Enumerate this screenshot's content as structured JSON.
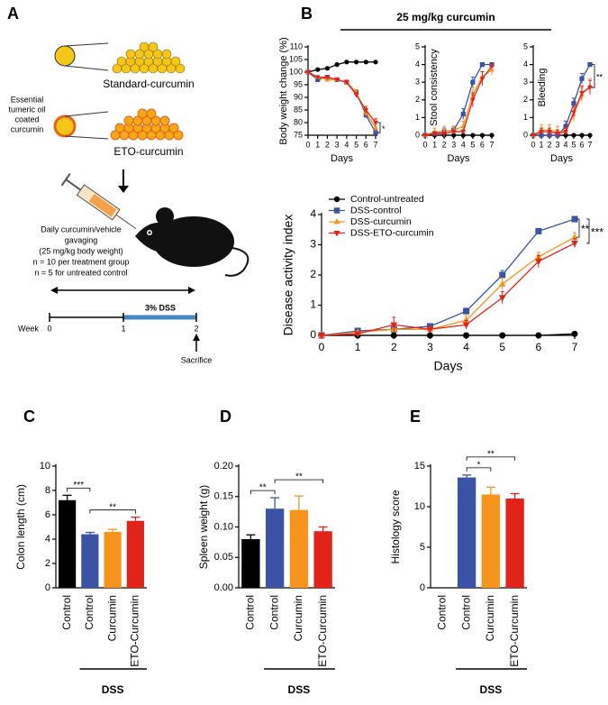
{
  "panels": [
    "A",
    "B",
    "C",
    "D",
    "E"
  ],
  "panel_a": {
    "standard_label": "Standard-curcumin",
    "eto_note": [
      "Essential",
      "tumeric oil",
      "coated",
      "curcumin"
    ],
    "eto_label": "ETO-curcumin",
    "protocol": [
      "Daily curcumin/vehicle",
      "gavaging",
      "(25 mg/kg body weight)",
      "n = 10 per treatment group",
      "n = 5 for untreated control"
    ],
    "dss_label": "3% DSS",
    "week_label": "Week",
    "weeks": [
      0,
      1,
      2
    ],
    "sacrifice_label": "Sacrifice"
  },
  "b_header": "25 mg/kg curcumin",
  "chart_data": [
    {
      "type": "line",
      "y_label": "Body weight change (%)",
      "x_label": "Days",
      "x": [
        0,
        1,
        2,
        3,
        4,
        5,
        6,
        7
      ],
      "xlim": [
        0,
        7
      ],
      "xticks": [
        0,
        1,
        2,
        3,
        4,
        5,
        6,
        7
      ],
      "ylim": [
        75,
        110
      ],
      "yticks": [
        75,
        80,
        85,
        90,
        95,
        100,
        105,
        110
      ],
      "annotations": [
        "*"
      ],
      "series": [
        {
          "color": "#000000",
          "marker": "circle",
          "values": [
            100,
            101,
            101.5,
            103,
            104,
            104,
            104,
            104
          ],
          "errors": [
            0,
            0.5,
            0.5,
            0.5,
            0.5,
            0.5,
            0.5,
            0.5
          ]
        },
        {
          "color": "#3a53a4",
          "marker": "square",
          "values": [
            100,
            97,
            98,
            97,
            96,
            92,
            83,
            76
          ],
          "errors": [
            0,
            0.5,
            0.5,
            0.5,
            0.8,
            1,
            1.2,
            1.2
          ]
        },
        {
          "color": "#f7941d",
          "marker": "triangle-up",
          "values": [
            100,
            98,
            97,
            97,
            96,
            92,
            84,
            78
          ],
          "errors": [
            0,
            0.6,
            0.6,
            0.6,
            0.8,
            1,
            1.5,
            1.5
          ]
        },
        {
          "color": "#e2231a",
          "marker": "triangle-down",
          "values": [
            100,
            98,
            98,
            97,
            96,
            91,
            85,
            80
          ],
          "errors": [
            0,
            0.5,
            0.6,
            0.6,
            0.8,
            1,
            1.4,
            1.5
          ]
        }
      ]
    },
    {
      "type": "line",
      "y_label": "Stool consistency",
      "x_label": "Days",
      "x": [
        0,
        1,
        2,
        3,
        4,
        5,
        6,
        7
      ],
      "xlim": [
        0,
        7
      ],
      "xticks": [
        0,
        1,
        2,
        3,
        4,
        5,
        6,
        7
      ],
      "ylim": [
        0,
        5
      ],
      "yticks": [
        0,
        1,
        2,
        3,
        4,
        5
      ],
      "annotations": [],
      "series": [
        {
          "color": "#000000",
          "marker": "circle",
          "values": [
            0,
            0,
            0,
            0,
            0,
            0,
            0,
            0
          ],
          "errors": [
            0,
            0,
            0,
            0,
            0,
            0,
            0,
            0
          ]
        },
        {
          "color": "#3a53a4",
          "marker": "square",
          "values": [
            0,
            0.1,
            0.2,
            0.3,
            1.2,
            3,
            4,
            4
          ],
          "errors": [
            0,
            0.1,
            0.2,
            0.2,
            0.3,
            0.3,
            0,
            0
          ]
        },
        {
          "color": "#f7941d",
          "marker": "triangle-up",
          "values": [
            0,
            0.2,
            0.2,
            0.3,
            0.5,
            2.3,
            3.3,
            3.7
          ],
          "errors": [
            0,
            0.2,
            0.3,
            0.2,
            0.3,
            0.4,
            0.3,
            0.3
          ]
        },
        {
          "color": "#e2231a",
          "marker": "triangle-down",
          "values": [
            0,
            0.1,
            0.1,
            0.2,
            0.2,
            2,
            3.2,
            3.9
          ],
          "errors": [
            0,
            0.1,
            0.1,
            0.1,
            0.1,
            0.4,
            0.4,
            0.1
          ]
        }
      ]
    },
    {
      "type": "line",
      "y_label": "Bleeding",
      "x_label": "Days",
      "x": [
        0,
        1,
        2,
        3,
        4,
        5,
        6,
        7
      ],
      "xlim": [
        0,
        7
      ],
      "xticks": [
        0,
        1,
        2,
        3,
        4,
        5,
        6,
        7
      ],
      "ylim": [
        0,
        5
      ],
      "yticks": [
        0,
        1,
        2,
        3,
        4,
        5
      ],
      "annotations": [
        "**"
      ],
      "series": [
        {
          "color": "#000000",
          "marker": "circle",
          "values": [
            0,
            0,
            0,
            0,
            0,
            0,
            0,
            0
          ],
          "errors": [
            0,
            0,
            0,
            0,
            0,
            0,
            0,
            0
          ]
        },
        {
          "color": "#3a53a4",
          "marker": "square",
          "values": [
            0,
            0,
            0,
            0,
            0.5,
            1.8,
            3.2,
            4
          ],
          "errors": [
            0,
            0,
            0,
            0,
            0.3,
            0.3,
            0.3,
            0
          ]
        },
        {
          "color": "#f7941d",
          "marker": "triangle-up",
          "values": [
            0,
            0.3,
            0.3,
            0.2,
            0.2,
            1.2,
            2.3,
            2.8
          ],
          "errors": [
            0,
            0.3,
            0.3,
            0.3,
            0.2,
            0.4,
            0.4,
            0.4
          ]
        },
        {
          "color": "#e2231a",
          "marker": "triangle-down",
          "values": [
            0,
            0.2,
            0.2,
            0.1,
            0.2,
            1.3,
            2.4,
            2.7
          ],
          "errors": [
            0,
            0.2,
            0.2,
            0.2,
            0.2,
            0.3,
            0.4,
            0.4
          ]
        }
      ]
    },
    {
      "type": "line",
      "y_label": "Disease activity index",
      "x_label": "Days",
      "legend": "upper left",
      "x": [
        0,
        1,
        2,
        3,
        4,
        5,
        6,
        7
      ],
      "xlim": [
        0,
        7
      ],
      "xticks": [
        0,
        1,
        2,
        3,
        4,
        5,
        6,
        7
      ],
      "ylim": [
        0,
        4
      ],
      "yticks": [
        0,
        1,
        2,
        3,
        4
      ],
      "annotations": [
        "**",
        "***"
      ],
      "series": [
        {
          "name": "Control-untreated",
          "color": "#000000",
          "marker": "circle",
          "values": [
            0,
            0,
            0,
            0,
            0,
            0,
            0,
            0.05
          ],
          "errors": [
            0,
            0,
            0,
            0,
            0,
            0,
            0,
            0
          ]
        },
        {
          "name": "DSS-control",
          "color": "#3a53a4",
          "marker": "square",
          "values": [
            0,
            0.15,
            0.2,
            0.3,
            0.8,
            2,
            3.45,
            3.85
          ],
          "errors": [
            0,
            0.05,
            0.05,
            0.05,
            0.1,
            0.15,
            0.05,
            0.05
          ]
        },
        {
          "name": "DSS-curcumin",
          "color": "#f7941d",
          "marker": "triangle-up",
          "values": [
            0,
            0.1,
            0.2,
            0.2,
            0.5,
            1.7,
            2.6,
            3.25
          ],
          "errors": [
            0,
            0.05,
            0.05,
            0.05,
            0.15,
            0.2,
            0.15,
            0.15
          ]
        },
        {
          "name": "DSS-ETO-curcumin",
          "color": "#e2231a",
          "marker": "triangle-down",
          "values": [
            0,
            0.05,
            0.35,
            0.2,
            0.35,
            1.25,
            2.45,
            3.05
          ],
          "errors": [
            0,
            0.05,
            0.25,
            0.1,
            0.15,
            0.2,
            0.2,
            0.15
          ]
        }
      ]
    },
    {
      "type": "bar",
      "y_label": "Colon length (cm)",
      "group_label": "DSS",
      "categories": [
        "Control",
        "Control",
        "Curcumin",
        "ETO-Curcumin"
      ],
      "values": [
        7.2,
        4.4,
        4.6,
        5.5
      ],
      "errors": [
        0.4,
        0.15,
        0.2,
        0.3
      ],
      "colors": [
        "#000000",
        "#3a53a4",
        "#f7941d",
        "#e2231a"
      ],
      "ylim": [
        0,
        10
      ],
      "yticks": [
        0,
        2,
        4,
        6,
        8,
        10
      ],
      "annotations": [
        "***",
        "**"
      ]
    },
    {
      "type": "bar",
      "y_label": "Spleen weight (g)",
      "group_label": "DSS",
      "categories": [
        "Control",
        "Control",
        "Curcumin",
        "ETO-Curcumin"
      ],
      "values": [
        0.08,
        0.13,
        0.128,
        0.093
      ],
      "errors": [
        0.007,
        0.018,
        0.023,
        0.007
      ],
      "colors": [
        "#000000",
        "#3a53a4",
        "#f7941d",
        "#e2231a"
      ],
      "ylim": [
        0,
        0.2
      ],
      "yticks": [
        {
          "value": 0,
          "label": "0.00"
        },
        {
          "value": 0.05,
          "label": "0.05"
        },
        {
          "value": 0.1,
          "label": "0.10"
        },
        {
          "value": 0.15,
          "label": "0.15"
        },
        {
          "value": 0.2,
          "label": "0.20"
        }
      ],
      "annotations": [
        "**",
        "**"
      ]
    },
    {
      "type": "bar",
      "y_label": "Histology score",
      "group_label": "DSS",
      "categories": [
        "Control",
        "Control",
        "Curcumin",
        "ETO-Curcumin"
      ],
      "values": [
        0,
        13.6,
        11.5,
        11
      ],
      "errors": [
        0,
        0.3,
        0.9,
        0.6
      ],
      "colors": [
        "#000000",
        "#3a53a4",
        "#f7941d",
        "#e2231a"
      ],
      "ylim": [
        0,
        15
      ],
      "yticks": [
        0,
        5,
        10,
        15
      ],
      "annotations": [
        "*",
        "**"
      ]
    }
  ]
}
